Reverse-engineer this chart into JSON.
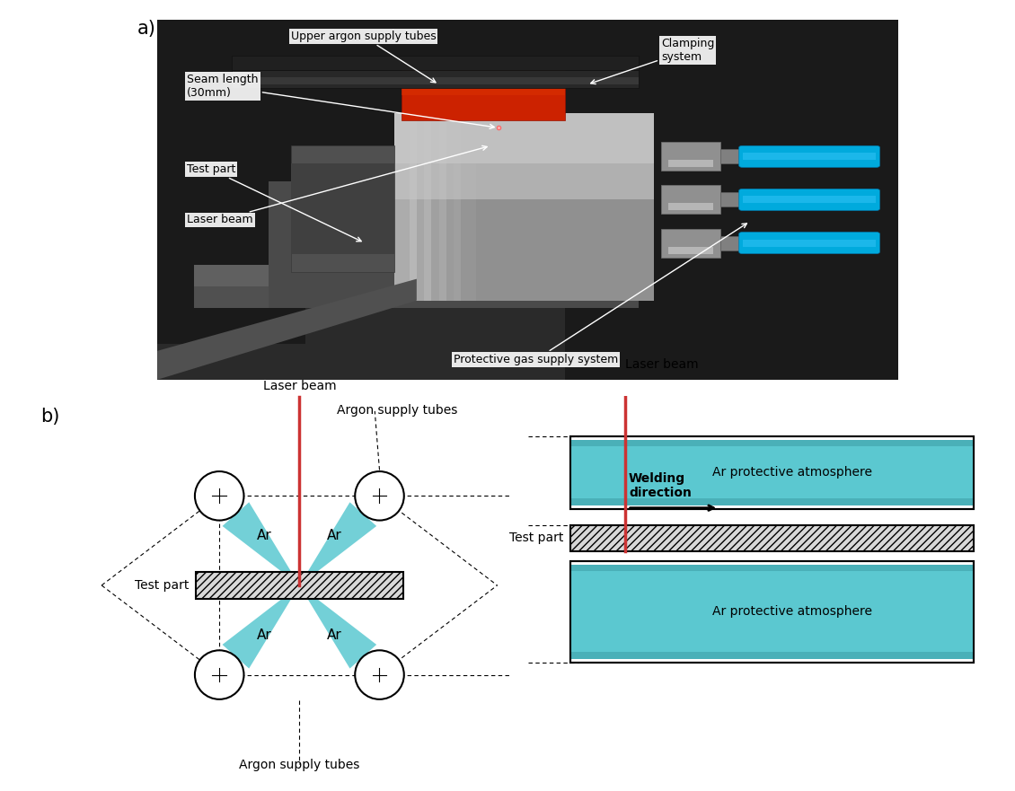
{
  "photo_label": "a)",
  "diagram_label": "b)",
  "cyan_color": "#5BC8D0",
  "cyan_dark": "#4ab0b8",
  "red_color": "#CC3333",
  "background": "#ffffff",
  "annotations_photo": {
    "upper_argon": "Upper argon supply tubes",
    "clamping": "Clamping\nsystem",
    "seam": "Seam length\n(30mm)",
    "test_part": "Test part",
    "laser_beam": "Laser beam",
    "protective_gas": "Protective gas supply system"
  },
  "annotations_diagram_left": {
    "laser_beam": "Laser beam",
    "argon_top": "Argon supply tubes",
    "argon_bottom": "Argon supply tubes",
    "test_part": "Test part",
    "ar_ul": "Ar",
    "ar_ur": "Ar",
    "ar_ll": "Ar",
    "ar_lr": "Ar"
  },
  "annotations_diagram_right": {
    "laser_beam": "Laser beam",
    "welding_dir": "Welding\ndirection",
    "ar_top": "Ar protective atmosphere",
    "ar_bottom": "Ar protective atmosphere",
    "test_part": "Test part"
  },
  "photo_bg_color": "#1a1a1a",
  "metal_dark": "#3a3a3a",
  "metal_mid": "#6a6a6a",
  "metal_light": "#a0a0a0",
  "metal_bright": "#c8c8c8",
  "blue_tube": "#00aadd"
}
